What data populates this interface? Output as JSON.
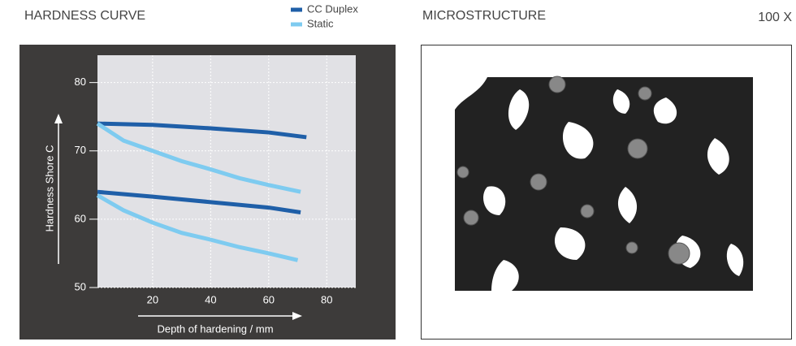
{
  "chart_data": {
    "type": "line",
    "title": "HARDNESS CURVE",
    "x_label": "Depth of hardening / mm",
    "y_label": "Hardness Shore C",
    "xlim": [
      1,
      90
    ],
    "ylim": [
      50,
      84
    ],
    "xticks": [
      20,
      40,
      60,
      80
    ],
    "yticks": [
      50,
      60,
      70,
      80
    ],
    "grid": true,
    "series": [
      {
        "name": "CC Duplex",
        "color": "#1f5fa8",
        "lines": [
          {
            "x": [
              1,
              20,
              40,
              60,
              73
            ],
            "values": [
              74,
              73.8,
              73.3,
              72.7,
              72
            ]
          },
          {
            "x": [
              1,
              20,
              40,
              60,
              71
            ],
            "values": [
              64,
              63.3,
              62.5,
              61.7,
              61
            ]
          }
        ]
      },
      {
        "name": "Static",
        "color": "#7ecbf0",
        "lines": [
          {
            "x": [
              1,
              10,
              20,
              30,
              40,
              50,
              60,
              71
            ],
            "values": [
              74,
              71.5,
              70,
              68.5,
              67.3,
              66,
              65,
              64
            ]
          },
          {
            "x": [
              1,
              10,
              20,
              30,
              40,
              50,
              60,
              70
            ],
            "values": [
              63.5,
              61.3,
              59.5,
              58,
              57,
              55.9,
              55,
              54
            ]
          }
        ]
      }
    ]
  },
  "microstructure": {
    "title": "MICROSTRUCTURE",
    "magnification": "100 X"
  }
}
